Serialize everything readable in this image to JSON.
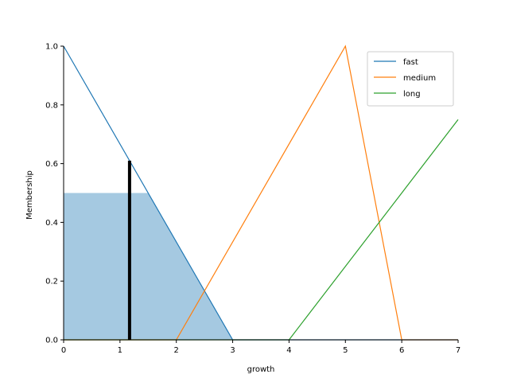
{
  "chart_data": {
    "type": "line",
    "title": "",
    "xlabel": "growth",
    "ylabel": "Membership",
    "xlim": [
      0,
      7
    ],
    "ylim": [
      0,
      1.0
    ],
    "xticks": [
      "0",
      "1",
      "2",
      "3",
      "4",
      "5",
      "6",
      "7"
    ],
    "yticks": [
      "0.0",
      "0.2",
      "0.4",
      "0.6",
      "0.8",
      "1.0"
    ],
    "grid": false,
    "legend": "top-right",
    "series": [
      {
        "name": "fast",
        "color": "#1f77b4",
        "x": [
          0,
          3,
          7
        ],
        "y": [
          1.0,
          0.0,
          0.0
        ]
      },
      {
        "name": "medium",
        "color": "#ff7f0e",
        "x": [
          0,
          2,
          5,
          6,
          7
        ],
        "y": [
          0.0,
          0.0,
          1.0,
          0.0,
          0.0
        ]
      },
      {
        "name": "long",
        "color": "#2ca02c",
        "x": [
          0,
          4,
          7
        ],
        "y": [
          0.0,
          0.0,
          0.75
        ]
      }
    ],
    "filled_area": {
      "color": "#1f77b4",
      "opacity": 0.4,
      "x": [
        0,
        1.5,
        3
      ],
      "y": [
        0.5,
        0.5,
        0.0
      ]
    },
    "marker_line": {
      "color": "#000000",
      "x": 1.17,
      "y": 0.61
    }
  }
}
